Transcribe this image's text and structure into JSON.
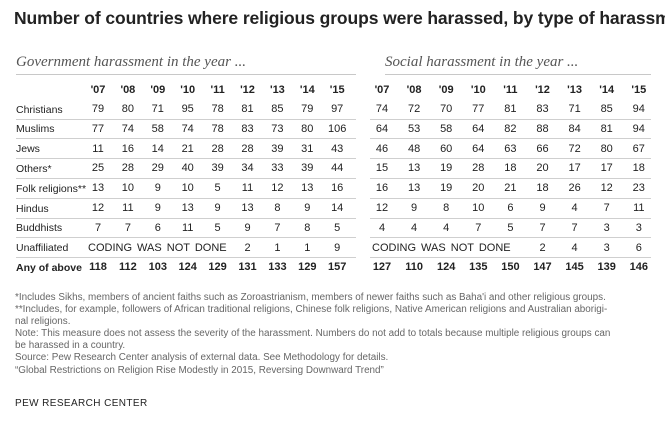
{
  "title": "Number of countries where religious groups were harassed, by type of harassment",
  "panels": {
    "government": "Government harassment in the year ...",
    "social": "Social harassment in the year ..."
  },
  "chart_data": {
    "type": "table",
    "years": [
      "'07",
      "'08",
      "'09",
      "'10",
      "'11",
      "'12",
      "'13",
      "'14",
      "'15"
    ],
    "government": [
      {
        "label": "Christians",
        "values": [
          "79",
          "80",
          "71",
          "95",
          "78",
          "81",
          "85",
          "79",
          "97"
        ]
      },
      {
        "label": "Muslims",
        "values": [
          "77",
          "74",
          "58",
          "74",
          "78",
          "83",
          "73",
          "80",
          "106"
        ]
      },
      {
        "label": "Jews",
        "values": [
          "11",
          "16",
          "14",
          "21",
          "28",
          "28",
          "39",
          "31",
          "43"
        ]
      },
      {
        "label": "Others*",
        "values": [
          "25",
          "28",
          "29",
          "40",
          "39",
          "34",
          "33",
          "39",
          "44"
        ]
      },
      {
        "label": "Folk religions**",
        "values": [
          "13",
          "10",
          "9",
          "10",
          "5",
          "11",
          "12",
          "13",
          "16"
        ]
      },
      {
        "label": "Hindus",
        "values": [
          "12",
          "11",
          "9",
          "13",
          "9",
          "13",
          "8",
          "9",
          "14"
        ]
      },
      {
        "label": "Buddhists",
        "values": [
          "7",
          "7",
          "6",
          "11",
          "5",
          "9",
          "7",
          "8",
          "5"
        ]
      },
      {
        "label": "Unaffiliated",
        "values": [
          "",
          "",
          "",
          "",
          "",
          "2",
          "1",
          "1",
          "9"
        ]
      },
      {
        "label": "Any of above",
        "values": [
          "118",
          "112",
          "103",
          "124",
          "129",
          "131",
          "133",
          "129",
          "157"
        ],
        "bold": true
      }
    ],
    "social": [
      {
        "label": "Christians",
        "values": [
          "74",
          "72",
          "70",
          "77",
          "81",
          "83",
          "71",
          "85",
          "94"
        ]
      },
      {
        "label": "Muslims",
        "values": [
          "64",
          "53",
          "58",
          "64",
          "82",
          "88",
          "84",
          "81",
          "94"
        ]
      },
      {
        "label": "Jews",
        "values": [
          "46",
          "48",
          "60",
          "64",
          "63",
          "66",
          "72",
          "80",
          "67"
        ]
      },
      {
        "label": "Others*",
        "values": [
          "15",
          "13",
          "19",
          "28",
          "18",
          "20",
          "17",
          "17",
          "18"
        ]
      },
      {
        "label": "Folk religions**",
        "values": [
          "16",
          "13",
          "19",
          "20",
          "21",
          "18",
          "26",
          "12",
          "23"
        ]
      },
      {
        "label": "Hindus",
        "values": [
          "12",
          "9",
          "8",
          "10",
          "6",
          "9",
          "4",
          "7",
          "11"
        ]
      },
      {
        "label": "Buddhists",
        "values": [
          "4",
          "4",
          "4",
          "7",
          "5",
          "7",
          "7",
          "3",
          "3"
        ]
      },
      {
        "label": "Unaffiliated",
        "values": [
          "",
          "",
          "",
          "",
          "",
          "2",
          "4",
          "3",
          "6"
        ]
      },
      {
        "label": "Any of above",
        "values": [
          "127",
          "110",
          "124",
          "135",
          "150",
          "147",
          "145",
          "139",
          "146"
        ],
        "bold": true
      }
    ],
    "unaffiliated_note": "CODING WAS NOT DONE"
  },
  "notes": [
    "*Includes Sikhs, members of ancient faiths such as Zoroastrianism, members of newer faiths such as Baha'i and other religious groups.",
    "**Includes, for example, followers of African traditional religions, Chinese folk religions, Native American religions and Australian aborigi-",
    "nal religions.",
    "Note: This measure does not assess the severity of the harassment. Numbers do not add to totals because multiple religious groups can",
    "be harassed in a country.",
    "Source: Pew Research Center analysis of external data. See Methodology for details.",
    "“Global Restrictions on Religion Rise Modestly in 2015, Reversing Downward Trend”"
  ],
  "source": "PEW RESEARCH CENTER"
}
